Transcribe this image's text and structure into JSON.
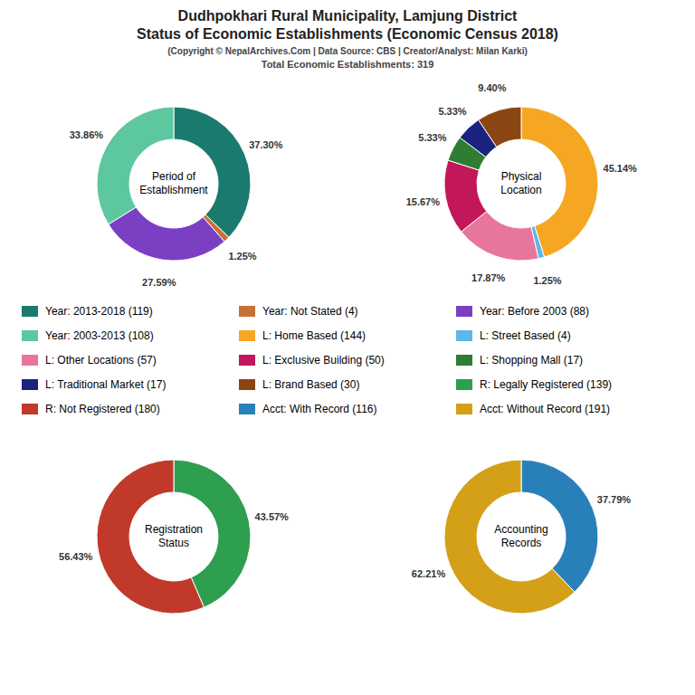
{
  "title": "Dudhpokhari Rural Municipality, Lamjung District\nStatus of Economic Establishments (Economic Census 2018)",
  "subtitle": "(Copyright © NepalArchives.Com | Data Source: CBS | Creator/Analyst: Milan Karki)",
  "annotations": [
    "Total Economic Establishments: 319"
  ],
  "chart_data": [
    {
      "type": "pie",
      "title": "Period of\nEstablishment",
      "categories": [
        "Year: 2013-2018 (119)",
        "Year: Not Stated (4)",
        "Year: Before 2003 (88)",
        "Year: 2003-2013 (108)"
      ],
      "values": [
        37.3,
        1.25,
        27.59,
        33.86
      ],
      "value_labels": [
        "37.30%",
        "1.25%",
        "27.59%",
        "33.86%"
      ],
      "colors": [
        "#1a7a6e",
        "#c87137",
        "#7b3fc4",
        "#5dc8a0"
      ],
      "data_labels": true
    },
    {
      "type": "pie",
      "title": "Physical\nLocation",
      "categories": [
        "L: Home Based (144)",
        "L: Street Based (4)",
        "L: Other Locations (57)",
        "L: Exclusive Building (50)",
        "L: Shopping Mall (17)",
        "L: Traditional Market (17)",
        "L: Brand Based (30)"
      ],
      "values": [
        45.14,
        1.25,
        17.87,
        15.67,
        5.33,
        5.33,
        9.4
      ],
      "value_labels": [
        "45.14%",
        "1.25%",
        "17.87%",
        "15.67%",
        "5.33%",
        "5.33%",
        "9.40%"
      ],
      "colors": [
        "#f5a623",
        "#5bb8e8",
        "#e8769c",
        "#c2185b",
        "#2e7d32",
        "#1a237e",
        "#8b4513"
      ],
      "data_labels": true
    },
    {
      "type": "pie",
      "title": "Registration\nStatus",
      "categories": [
        "R: Legally Registered (139)",
        "R: Not Registered (180)"
      ],
      "values": [
        43.57,
        56.43
      ],
      "value_labels": [
        "43.57%",
        "56.43%"
      ],
      "colors": [
        "#2e9e4f",
        "#c0392b"
      ],
      "data_labels": true
    },
    {
      "type": "pie",
      "title": "Accounting\nRecords",
      "categories": [
        "Acct: With Record (116)",
        "Acct: Without Record (191)"
      ],
      "values": [
        37.79,
        62.21
      ],
      "value_labels": [
        "37.79%",
        "62.21%"
      ],
      "colors": [
        "#2980b9",
        "#d4a017"
      ],
      "data_labels": true
    }
  ]
}
